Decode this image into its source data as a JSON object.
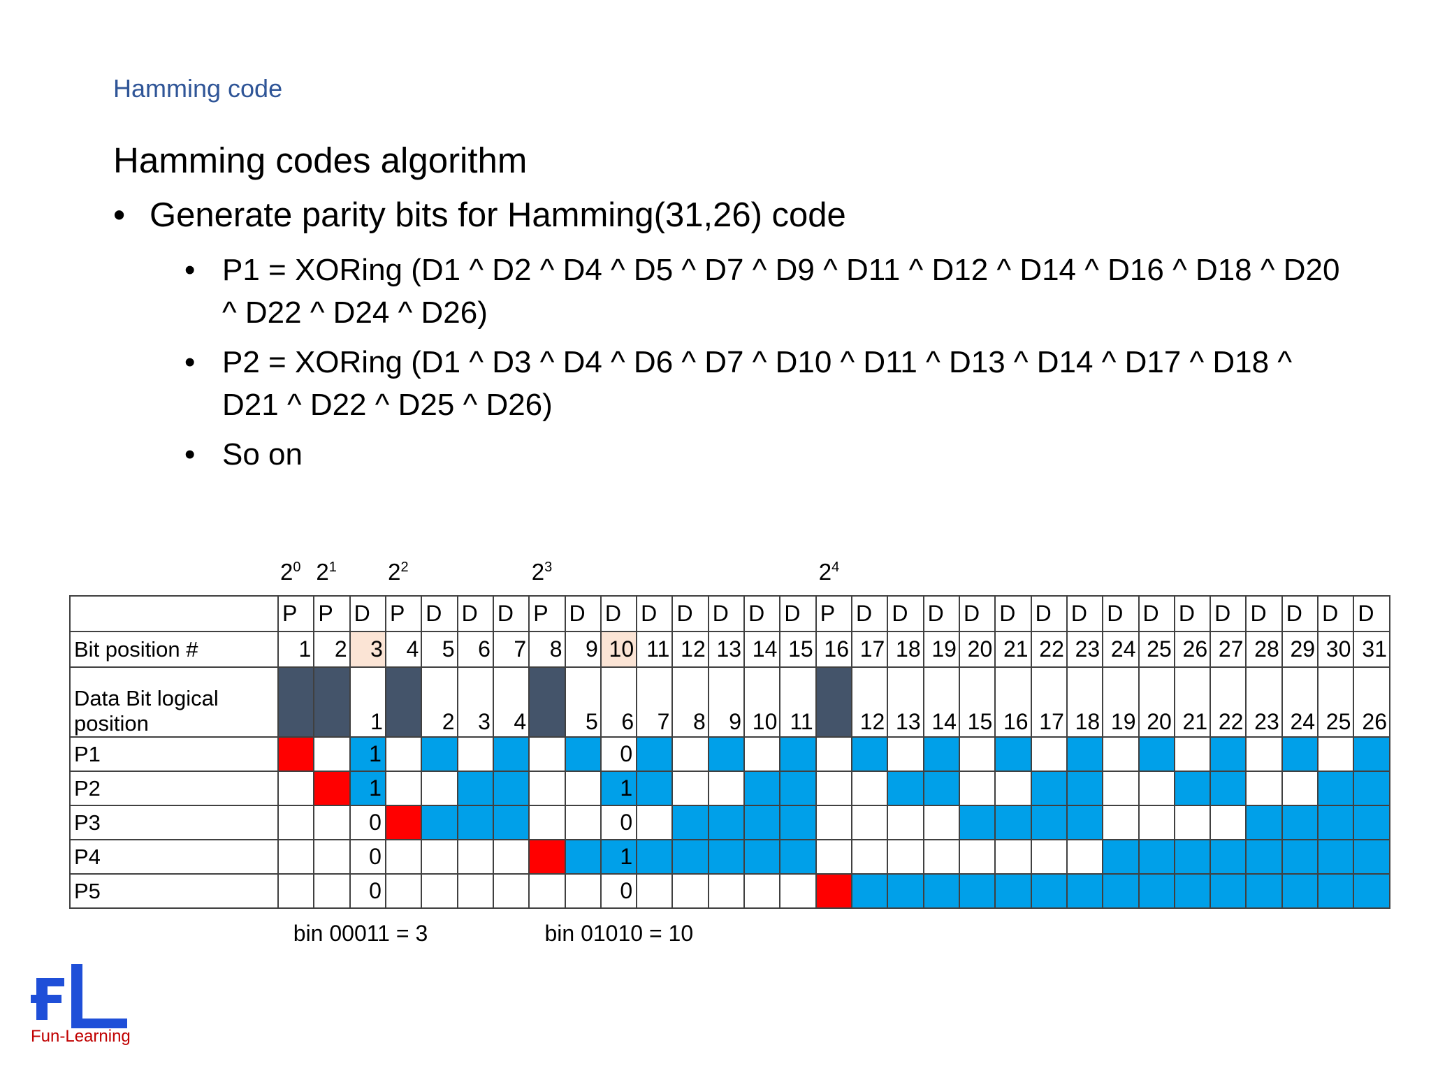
{
  "header": {
    "section_label": "Hamming code"
  },
  "slide": {
    "title": "Hamming codes algorithm",
    "bullet": "Generate parity bits for Hamming(31,26) code",
    "sub_bullets": [
      "P1 = XORing (D1 ^ D2 ^ D4 ^ D5 ^ D7 ^ D9 ^ D11 ^ D12 ^ D14 ^ D16 ^ D18 ^ D20 ^ D22 ^ D24 ^ D26)",
      "P2 = XORing (D1 ^ D3 ^ D4 ^ D6 ^ D7 ^ D10 ^ D11 ^ D13 ^ D14 ^ D17 ^ D18 ^ D21 ^ D22 ^ D25 ^ D26)",
      "So on"
    ],
    "bullet_glyph": "•"
  },
  "table": {
    "powers": [
      {
        "base": "2",
        "exp": "0",
        "position": 1
      },
      {
        "base": "2",
        "exp": "1",
        "position": 2
      },
      {
        "base": "2",
        "exp": "2",
        "position": 4
      },
      {
        "base": "2",
        "exp": "3",
        "position": 8
      },
      {
        "base": "2",
        "exp": "4",
        "position": 16
      }
    ],
    "type_row_label": "",
    "bit_position_label": "Bit position #",
    "logical_label": "Data Bit logical position",
    "parity_labels": [
      "P1",
      "P2",
      "P3",
      "P4",
      "P5"
    ],
    "types": [
      "P",
      "P",
      "D",
      "P",
      "D",
      "D",
      "D",
      "P",
      "D",
      "D",
      "D",
      "D",
      "D",
      "D",
      "D",
      "P",
      "D",
      "D",
      "D",
      "D",
      "D",
      "D",
      "D",
      "D",
      "D",
      "D",
      "D",
      "D",
      "D",
      "D",
      "D"
    ],
    "positions": [
      "1",
      "2",
      "3",
      "4",
      "5",
      "6",
      "7",
      "8",
      "9",
      "10",
      "11",
      "12",
      "13",
      "14",
      "15",
      "16",
      "17",
      "18",
      "19",
      "20",
      "21",
      "22",
      "23",
      "24",
      "25",
      "26",
      "27",
      "28",
      "29",
      "30",
      "31"
    ],
    "logical": [
      "",
      "",
      "1",
      "",
      "2",
      "3",
      "4",
      "",
      "5",
      "6",
      "7",
      "8",
      "9",
      "10",
      "11",
      "",
      "12",
      "13",
      "14",
      "15",
      "16",
      "17",
      "18",
      "19",
      "20",
      "21",
      "22",
      "23",
      "24",
      "25",
      "26"
    ],
    "highlighted_positions": [
      3,
      10
    ],
    "col3_values": [
      "1",
      "1",
      "0",
      "0",
      "0"
    ],
    "col10_values": [
      "0",
      "1",
      "0",
      "1",
      "0"
    ],
    "notes": [
      {
        "text": "bin 00011 = 3",
        "column": 3
      },
      {
        "text": "bin 01010 = 10",
        "column": 10
      }
    ],
    "colors": {
      "parity_bit": "#ff0000",
      "covered": "#00a0e9",
      "reserved": "#44546a",
      "highlight": "#fbe4d5"
    }
  },
  "logo": {
    "text": "Fun-Learning",
    "mark": "FL"
  }
}
